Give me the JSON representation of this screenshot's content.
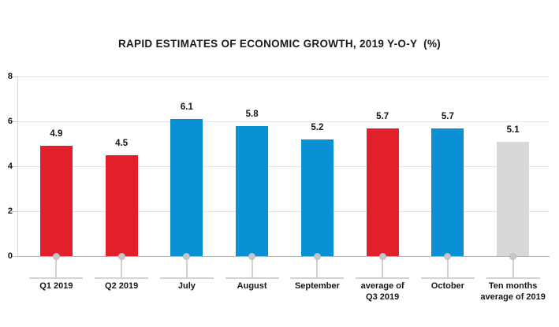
{
  "chart_data": {
    "type": "bar",
    "title": "RAPID ESTIMATES OF ECONOMIC GROWTH, 2019 Y-O-Y  (%)",
    "categories": [
      "Q1 2019",
      "Q2 2019",
      "July",
      "August",
      "September",
      "average of\nQ3 2019",
      "October",
      "Ten months\naverage of 2019"
    ],
    "values": [
      4.9,
      4.5,
      6.1,
      5.8,
      5.2,
      5.7,
      5.7,
      5.1
    ],
    "bar_colors": [
      "#e2202c",
      "#e2202c",
      "#0a90d4",
      "#0a90d4",
      "#0a90d4",
      "#e2202c",
      "#0a90d4",
      "#d8d8da"
    ],
    "value_labels": [
      "4.9",
      "4.5",
      "6.1",
      "5.8",
      "5.2",
      "5.7",
      "5.7",
      "5.1"
    ],
    "xlabel": "",
    "ylabel": "",
    "ylim": [
      0,
      8
    ],
    "yticks": [
      0,
      2,
      4,
      6,
      8
    ],
    "ytick_labels": [
      "0",
      "2",
      "4",
      "6",
      "8"
    ],
    "grid": "horizontal",
    "legend": "none",
    "palette": {
      "red": "#e2202c",
      "blue": "#0a90d4",
      "gray": "#d8d8da"
    }
  }
}
